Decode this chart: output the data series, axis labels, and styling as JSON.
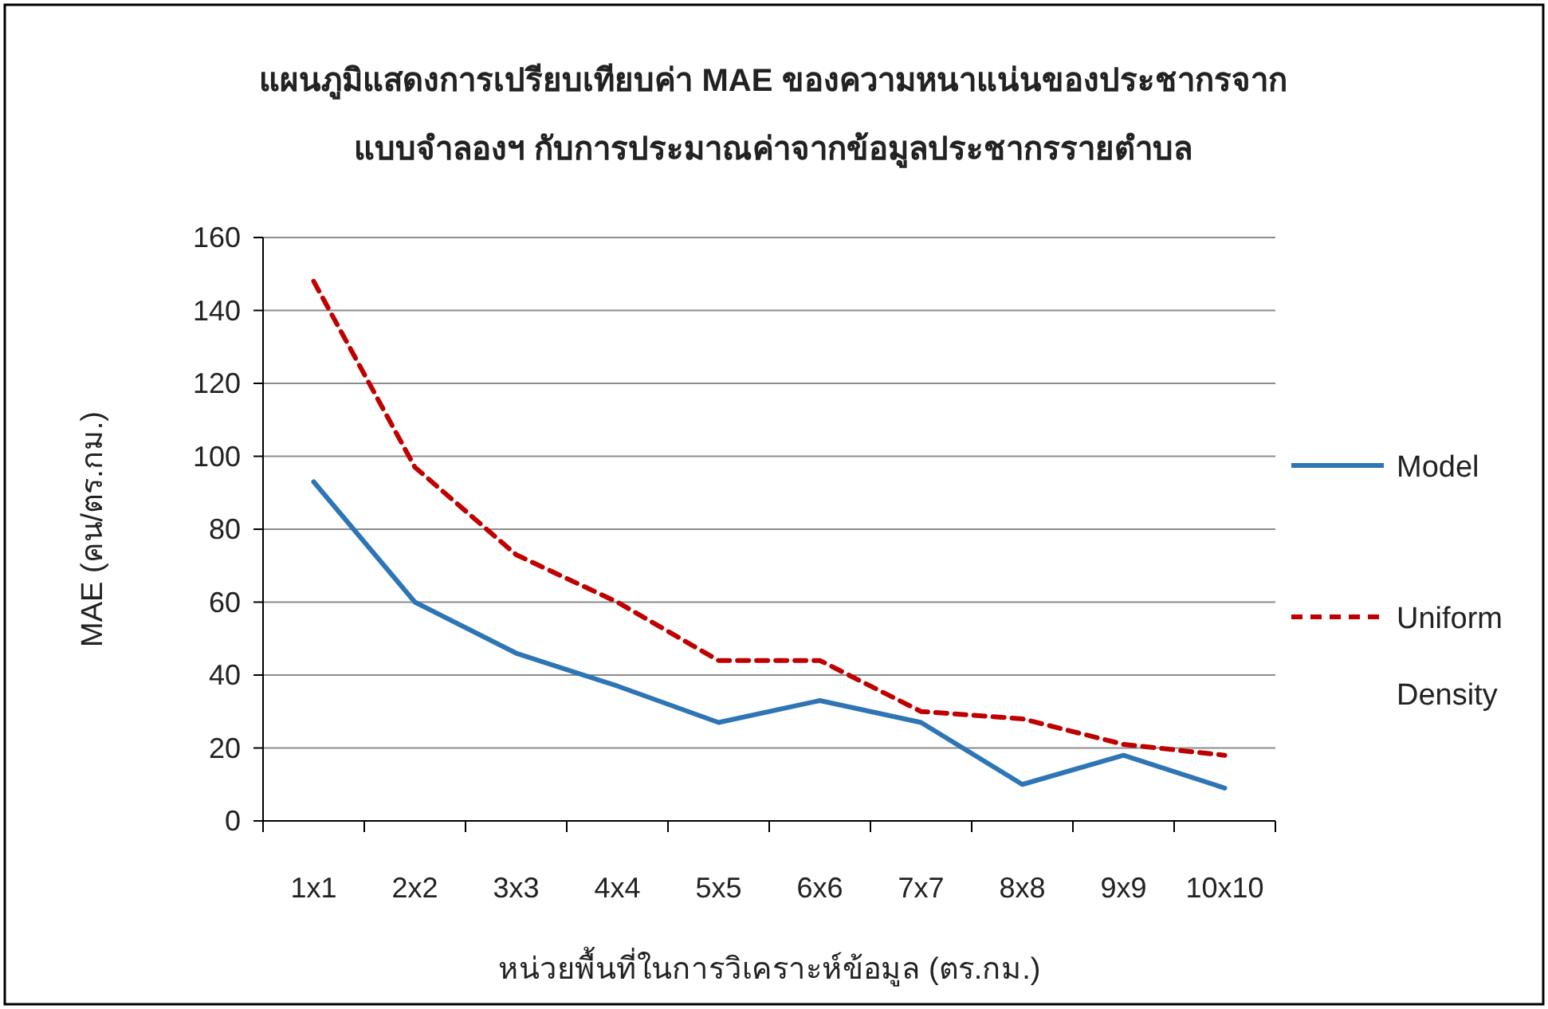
{
  "chart_data": {
    "type": "line",
    "title": "แผนภูมิแสดงการเปรียบเทียบค่า MAE ของความหนาแน่นของประชากรจาก\nแบบจำลองฯ กับการประมาณค่าจากข้อมูลประชากรรายตำบล",
    "xlabel": "หน่วยพื้นที่ในการวิเคราะห์ข้อมูล (ตร.กม.)",
    "ylabel": "MAE (คน/ตร.กม.)",
    "categories": [
      "1x1",
      "2x2",
      "3x3",
      "4x4",
      "5x5",
      "6x6",
      "7x7",
      "8x8",
      "9x9",
      "10x10"
    ],
    "series": [
      {
        "name": "Model",
        "color": "#2e75b6",
        "values": [
          93,
          60,
          46,
          37,
          27,
          33,
          27,
          10,
          18,
          9
        ]
      },
      {
        "name": "Uniform Density",
        "color": "#c00000",
        "line_style": "dashed",
        "values": [
          148,
          97,
          73,
          60,
          44,
          44,
          30,
          28,
          21,
          18
        ]
      }
    ],
    "ylim": [
      0,
      160
    ],
    "yticks": [
      0,
      20,
      40,
      60,
      80,
      100,
      120,
      140,
      160
    ],
    "grid": "y",
    "legend": "right",
    "marker": "none"
  }
}
